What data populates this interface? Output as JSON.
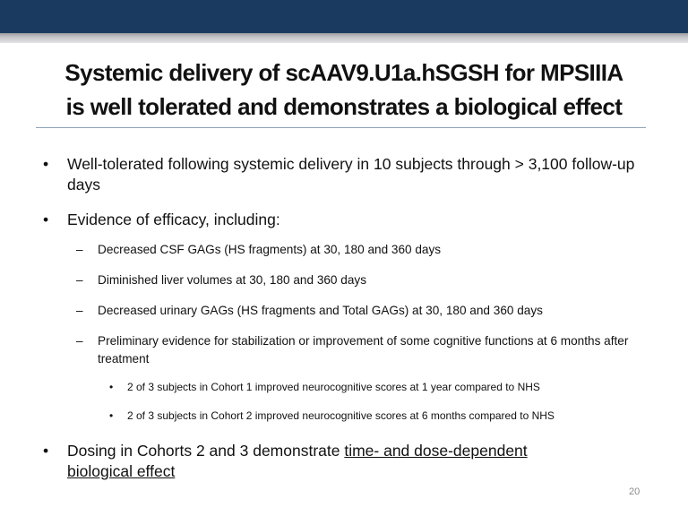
{
  "header": {
    "color": "#1b3a60"
  },
  "title": {
    "line1": "Systemic delivery of scAAV9.U1a.hSGSH  for MPSIIIA",
    "line2": "is well tolerated and demonstrates a biological effect"
  },
  "bullets": {
    "b1": "Well-tolerated following systemic delivery in 10 subjects through > 3,100 follow-up days",
    "b2": "Evidence of efficacy, including:",
    "sub1": "Decreased  CSF GAGs (HS fragments) at 30, 180 and 360 days",
    "sub2": "Diminished liver volumes at 30, 180 and 360 days",
    "sub3": "Decreased  urinary GAGs (HS fragments and Total GAGs) at 30, 180 and 360 days",
    "sub4": "Preliminary evidence for stabilization or improvement of some cognitive functions at 6 months after treatment",
    "subsub1": "2 of 3 subjects in Cohort 1 improved neurocognitive scores at 1 year compared to NHS",
    "subsub2": "2 of 3 subjects in Cohort 2 improved neurocognitive scores at 6 months compared to NHS",
    "b3_plain": "Dosing in Cohorts 2 and 3 demonstrate ",
    "b3_underlined": "time- and dose-dependent biological effect"
  },
  "glyphs": {
    "bullet": "•",
    "dash": "–"
  },
  "page_number": "20"
}
